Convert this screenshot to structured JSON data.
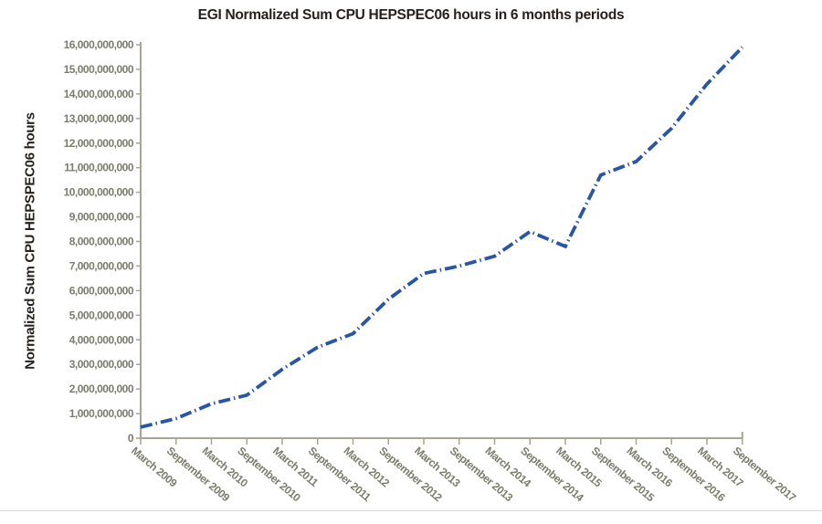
{
  "title": "EGI Normalized Sum CPU HEPSPEC06 hours in 6 months periods",
  "colors": {
    "line": "#2856a6",
    "axis": "#a6a693",
    "tick_label": "#7c7c6e",
    "title_text": "#26211d",
    "divider": "#d9d9d4",
    "background": "#ffffff"
  },
  "chart_data": {
    "type": "line",
    "title": "EGI Normalized Sum CPU HEPSPEC06 hours in 6 months periods",
    "xlabel": "",
    "ylabel": "Normalized Sum CPU HEPSPEC06 hours",
    "categories": [
      "March 2009",
      "September 2009",
      "March 2010",
      "September 2010",
      "March 2011",
      "September 2011",
      "March 2012",
      "September 2012",
      "March 2013",
      "September 2013",
      "March 2014",
      "September 2014",
      "March 2015",
      "September 2015",
      "March 2016",
      "September 2016",
      "March 2017",
      "September 2017"
    ],
    "series": [
      {
        "name": "Normalized Sum CPU HEPSPEC06 hours",
        "values": [
          450000000,
          800000000,
          1400000000,
          1750000000,
          2800000000,
          3700000000,
          4250000000,
          5650000000,
          6700000000,
          7000000000,
          7400000000,
          8400000000,
          7800000000,
          10700000000,
          11250000000,
          12600000000,
          14400000000,
          15900000000
        ]
      }
    ],
    "ylim": [
      0,
      16000000000
    ],
    "ytick_step": 1000000000,
    "ytick_labels": [
      "0",
      "1,000,000,000",
      "2,000,000,000",
      "3,000,000,000",
      "4,000,000,000",
      "5,000,000,000",
      "6,000,000,000",
      "7,000,000,000",
      "8,000,000,000",
      "9,000,000,000",
      "10,000,000,000",
      "11,000,000,000",
      "12,000,000,000",
      "13,000,000,000",
      "14,000,000,000",
      "15,000,000,000",
      "16,000,000,000"
    ],
    "grid": false,
    "legend": false,
    "line_style": "dash-dot",
    "x_label_rotation_deg": 40
  }
}
